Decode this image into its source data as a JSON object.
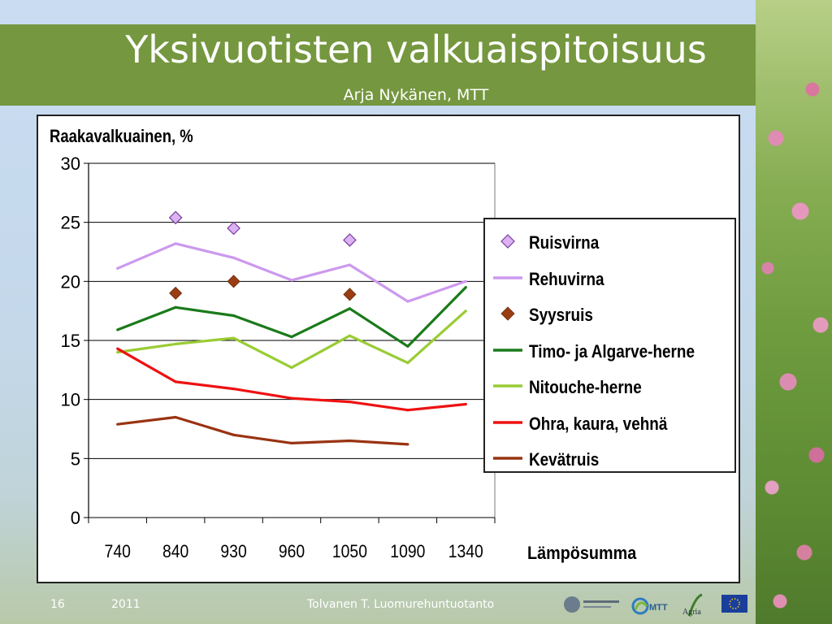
{
  "slide": {
    "title": "Yksivuotisten valkuaispitoisuus",
    "subtitle": "Arja Nykänen, MTT",
    "page_number": "16",
    "year": "2011",
    "footer_text": "Tolvanen T. Luomurehuntuotanto",
    "logos": [
      "helsingin-yliopisto-logo",
      "mtt-logo",
      "agria-logo",
      "eu-flag-logo"
    ],
    "logo_texts": {
      "mtt": "MTT",
      "agria": "Agria"
    }
  },
  "chart_data": {
    "type": "line",
    "ylabel": "Raakavalkuainen, %",
    "xlabel": "Lämpösumma",
    "categories": [
      "740",
      "840",
      "930",
      "960",
      "1050",
      "1090",
      "1340"
    ],
    "ylim": [
      0,
      30
    ],
    "yticks": [
      "0",
      "5",
      "10",
      "15",
      "20",
      "25",
      "30"
    ],
    "grid": "horizontal",
    "legend_position": "right",
    "series": [
      {
        "name": "Ruisvirna",
        "kind": "marker",
        "marker": "diamond-open",
        "color": "#c77ee8",
        "values": [
          null,
          25.4,
          24.5,
          null,
          23.5,
          null,
          null
        ]
      },
      {
        "name": "Rehuvirna",
        "kind": "line",
        "color": "#cc99ee",
        "values": [
          21.1,
          23.2,
          22.0,
          20.1,
          21.4,
          18.3,
          20.0
        ]
      },
      {
        "name": "Syysruis",
        "kind": "marker",
        "marker": "diamond-filled",
        "color": "#9a3d12",
        "values": [
          null,
          19.0,
          20.0,
          null,
          18.9,
          null,
          null
        ]
      },
      {
        "name": "Timo- ja Algarve-herne",
        "kind": "line",
        "color": "#1a7a1a",
        "values": [
          15.9,
          17.8,
          17.1,
          15.3,
          17.7,
          14.5,
          19.5
        ]
      },
      {
        "name": "Nitouche-herne",
        "kind": "line",
        "color": "#99cc33",
        "values": [
          14.0,
          14.7,
          15.2,
          12.7,
          15.4,
          13.1,
          17.5
        ]
      },
      {
        "name": "Ohra, kaura, vehnä",
        "kind": "line",
        "color": "#ee1111",
        "values": [
          14.3,
          11.5,
          10.9,
          10.1,
          9.8,
          9.1,
          9.6
        ]
      },
      {
        "name": "Kevätruis",
        "kind": "line",
        "color": "#993311",
        "values": [
          7.9,
          8.5,
          7.0,
          6.3,
          6.5,
          6.2,
          null
        ]
      }
    ]
  }
}
